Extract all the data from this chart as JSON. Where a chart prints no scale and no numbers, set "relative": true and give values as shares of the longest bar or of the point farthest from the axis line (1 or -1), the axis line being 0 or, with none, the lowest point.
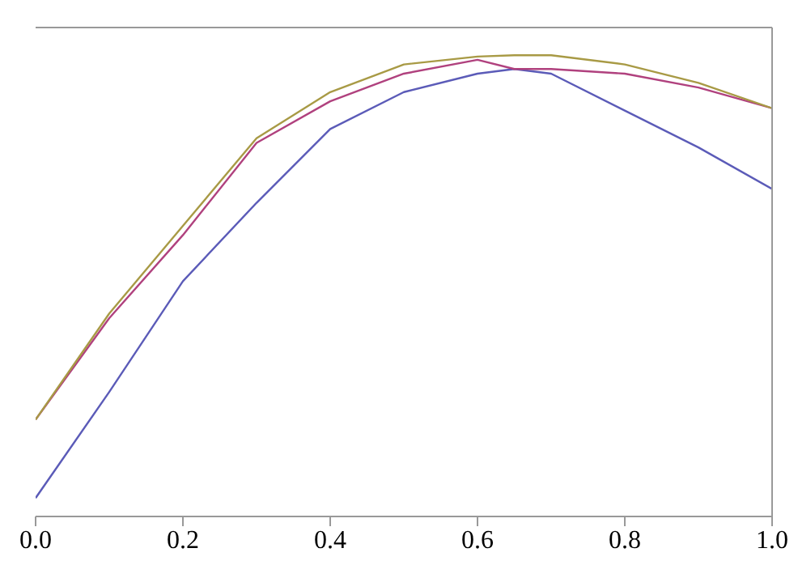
{
  "chart_data": {
    "type": "line",
    "relative": true,
    "x": [
      0,
      0.1,
      0.2,
      0.3,
      0.4,
      0.5,
      0.6,
      0.65,
      0.7,
      0.8,
      0.9,
      1.0
    ],
    "series": [
      {
        "color": "#5b5bb8",
        "values": [
          0.04,
          0.27,
          0.51,
          0.68,
          0.84,
          0.92,
          0.96,
          0.97,
          0.96,
          0.88,
          0.8,
          0.71
        ]
      },
      {
        "color": "#b0417e",
        "values": [
          0.21,
          0.43,
          0.61,
          0.81,
          0.9,
          0.96,
          0.99,
          0.97,
          0.97,
          0.96,
          0.93,
          0.885
        ]
      },
      {
        "color": "#a89a45",
        "values": [
          0.21,
          0.44,
          0.63,
          0.82,
          0.92,
          0.98,
          0.997,
          1.0,
          1.0,
          0.98,
          0.94,
          0.885
        ]
      }
    ],
    "xlim": [
      0,
      1
    ],
    "xticks": [
      {
        "value": 0,
        "label": "0.0"
      },
      0.2,
      0.4,
      0.6,
      0.8,
      {
        "value": 1,
        "label": "1.0"
      }
    ],
    "grid": false,
    "legend": false,
    "marker": "none",
    "line_style": "solid"
  }
}
